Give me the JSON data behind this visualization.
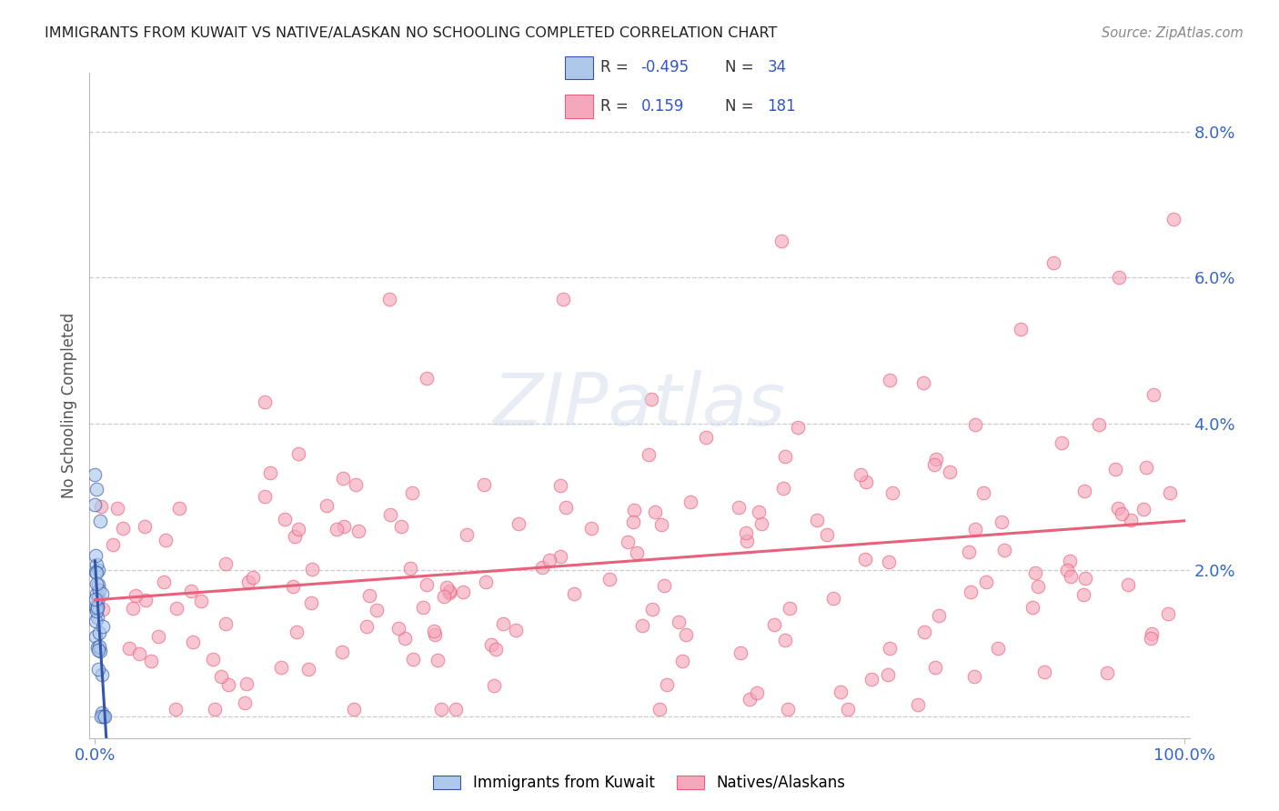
{
  "title": "IMMIGRANTS FROM KUWAIT VS NATIVE/ALASKAN NO SCHOOLING COMPLETED CORRELATION CHART",
  "source": "Source: ZipAtlas.com",
  "ylabel": "No Schooling Completed",
  "ytick_vals": [
    0.0,
    0.02,
    0.04,
    0.06,
    0.08
  ],
  "ytick_labels": [
    "",
    "2.0%",
    "4.0%",
    "6.0%",
    "8.0%"
  ],
  "xlim": [
    -0.005,
    1.005
  ],
  "ylim": [
    -0.003,
    0.088
  ],
  "legend_r_kuwait": "-0.495",
  "legend_n_kuwait": "34",
  "legend_r_native": "0.159",
  "legend_n_native": "181",
  "color_kuwait": "#adc8e8",
  "color_kuwait_line": "#3355aa",
  "color_native": "#f5a8bc",
  "color_native_line": "#e8607a",
  "color_grid": "#cccccc",
  "background_color": "#ffffff",
  "marker_size": 110,
  "marker_alpha": 0.65,
  "seed_kuwait": 77,
  "seed_native": 42
}
